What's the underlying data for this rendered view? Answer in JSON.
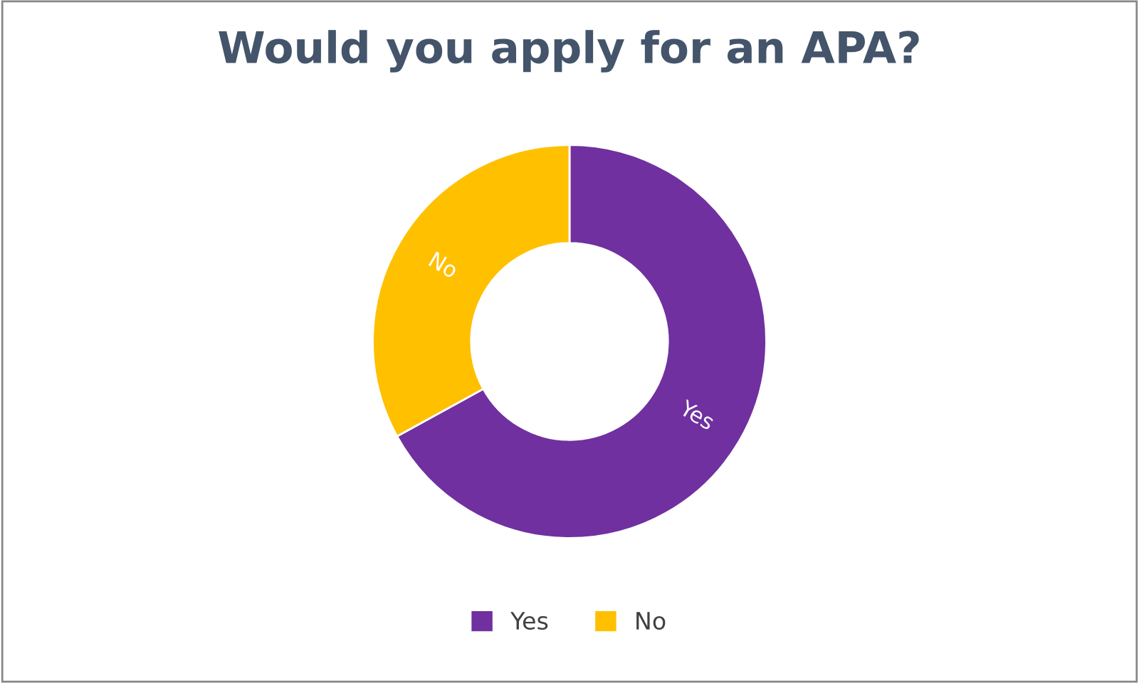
{
  "chart_data": {
    "type": "donut",
    "title": "Would you apply for an APA?",
    "categories": [
      "Yes",
      "No"
    ],
    "values": [
      67,
      33
    ],
    "colors": [
      "#7030a0",
      "#ffc000"
    ],
    "legend": "bottom"
  }
}
